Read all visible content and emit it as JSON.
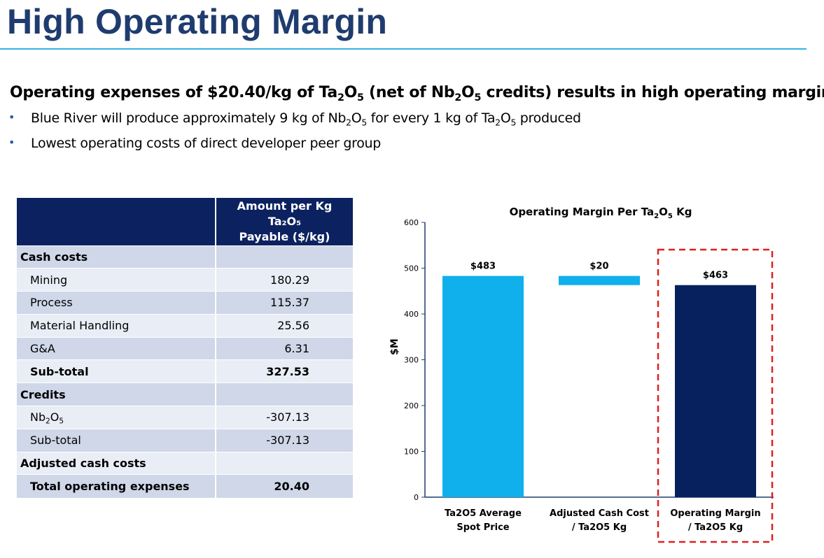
{
  "slide": {
    "title": "High Operating Margin"
  },
  "headline": {
    "part1": "Operating expenses of $20.40/kg of Ta",
    "sub1": "2",
    "part2": "O",
    "sub2": "5",
    "part3": " (net of Nb",
    "sub3": "2",
    "part4": "O",
    "sub4": "5",
    "part5": " credits) results in high operating margin."
  },
  "bullets": {
    "b1": {
      "part1": "Blue River will produce approximately 9 kg of Nb",
      "sub1": "2",
      "part2": "O",
      "sub2": "5",
      "part3": " for every 1 kg of Ta",
      "sub3": "2",
      "part4": "O",
      "sub4": "5",
      "part5": " produced"
    },
    "b2": "Lowest operating costs of direct developer peer group",
    "marker": "•"
  },
  "table": {
    "header_line1": "Amount per Kg Ta₂O₅",
    "header_line2": "Payable ($/kg)",
    "rows": [
      {
        "label": "Cash costs",
        "value": ""
      },
      {
        "label": "Mining",
        "value": "180.29"
      },
      {
        "label": "Process",
        "value": "115.37"
      },
      {
        "label": "Material Handling",
        "value": "25.56"
      },
      {
        "label": "G&A",
        "value": "6.31"
      },
      {
        "label": "Sub-total",
        "value": "327.53"
      },
      {
        "label": "Credits",
        "value": ""
      },
      {
        "label_a": "Nb",
        "label_sub1": "2",
        "label_b": "O",
        "label_sub2": "5",
        "value": "-307.13"
      },
      {
        "label": "Sub-total",
        "value": "-307.13"
      },
      {
        "label": "Adjusted cash costs",
        "value": ""
      },
      {
        "label": "Total operating expenses",
        "value": "20.40"
      }
    ]
  },
  "chart_data": {
    "type": "bar",
    "title_a": "Operating Margin Per Ta",
    "title_sub1": "2",
    "title_b": "O",
    "title_sub2": "5",
    "title_c": " Kg",
    "ylabel": "$M",
    "ylim": [
      0,
      600
    ],
    "yticks": [
      0,
      100,
      200,
      300,
      400,
      500,
      600
    ],
    "categories": [
      [
        "Ta2O5 Average",
        "Spot Price"
      ],
      [
        "Adjusted Cash Cost",
        "/ Ta2O5 Kg"
      ],
      [
        "Operating Margin",
        "/ Ta2O5 Kg"
      ]
    ],
    "bars": [
      {
        "base": 0,
        "top": 483,
        "label": "$483",
        "color": "#0fb0ec"
      },
      {
        "base": 463,
        "top": 483,
        "label": "$20",
        "color": "#0fb0ec"
      },
      {
        "base": 0,
        "top": 463,
        "label": "$463",
        "color": "#07215e"
      }
    ],
    "highlight_color": "#e02020"
  }
}
